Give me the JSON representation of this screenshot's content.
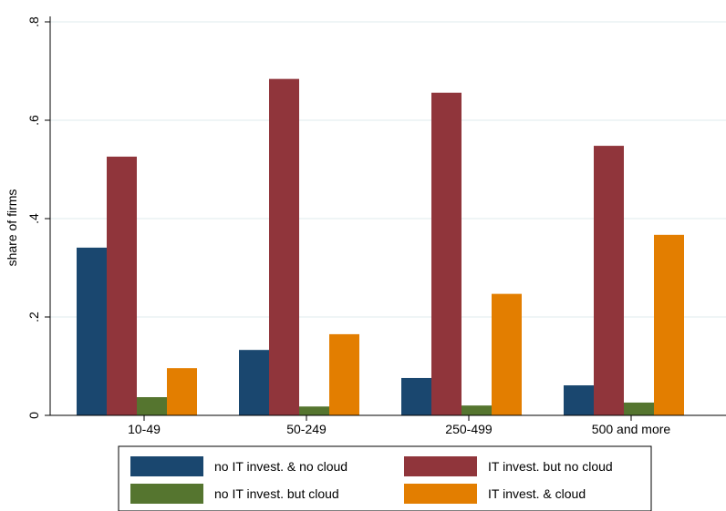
{
  "chart_data": {
    "type": "bar",
    "ylabel": "share of firms",
    "xlabel": "",
    "ylim": [
      0,
      0.8
    ],
    "yticks": [
      {
        "value": 0,
        "label": "0"
      },
      {
        "value": 0.2,
        "label": ".2"
      },
      {
        "value": 0.4,
        "label": ".4"
      },
      {
        "value": 0.6,
        "label": ".6"
      },
      {
        "value": 0.8,
        "label": ".8"
      }
    ],
    "categories": [
      "10-49",
      "50-249",
      "250-499",
      "500 and more"
    ],
    "series": [
      {
        "name": "no IT invest. & no cloud",
        "color": "#1a476f",
        "values": [
          0.341,
          0.133,
          0.076,
          0.061
        ]
      },
      {
        "name": "IT invest. but no cloud",
        "color": "#90353b",
        "values": [
          0.526,
          0.684,
          0.656,
          0.548
        ]
      },
      {
        "name": "no IT invest. but cloud",
        "color": "#55752f",
        "values": [
          0.037,
          0.018,
          0.02,
          0.026
        ]
      },
      {
        "name": "IT invest. & cloud",
        "color": "#e37e00",
        "values": [
          0.096,
          0.165,
          0.247,
          0.367
        ]
      }
    ],
    "grid": true,
    "legend_position": "bottom"
  }
}
